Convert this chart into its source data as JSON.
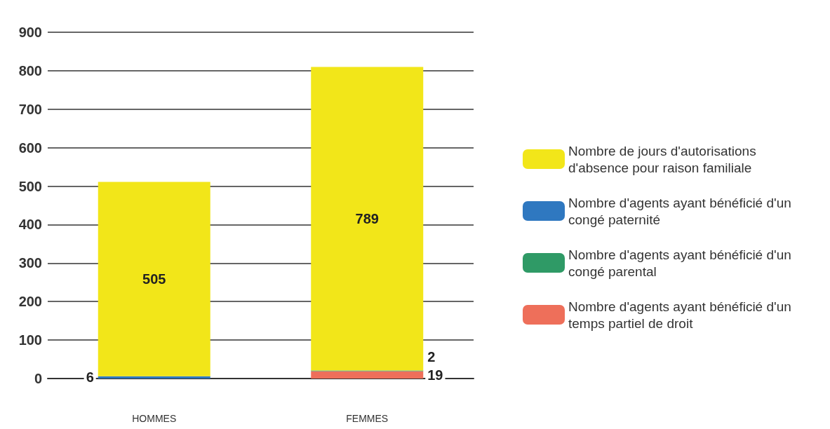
{
  "chart_data": {
    "type": "bar",
    "stacked": true,
    "categories": [
      "HOMMES",
      "FEMMES"
    ],
    "series": [
      {
        "name": "Nombre d'agents ayant bénéficié d'un temps partiel de droit",
        "color": "#ee6f5a",
        "values": [
          null,
          19
        ],
        "value_labels": [
          null,
          "19"
        ]
      },
      {
        "name": "Nombre d'agents ayant bénéficié d'un congé parental",
        "color": "#2f9a66",
        "values": [
          null,
          2
        ],
        "value_labels": [
          null,
          "2"
        ]
      },
      {
        "name": "Nombre d'agents ayant bénéficié d'un congé paternité",
        "color": "#2f78c0",
        "values": [
          6,
          null
        ],
        "value_labels": [
          "6",
          null
        ]
      },
      {
        "name": "Nombre de jours d'autorisations d'absence pour raison familiale",
        "color": "#f2e619",
        "values": [
          505,
          789
        ],
        "value_labels": [
          "505",
          "789"
        ]
      }
    ],
    "ylim": [
      0,
      900
    ],
    "yticks": [
      0,
      100,
      200,
      300,
      400,
      500,
      600,
      700,
      800,
      900
    ],
    "grid": "y",
    "legend": "right"
  }
}
